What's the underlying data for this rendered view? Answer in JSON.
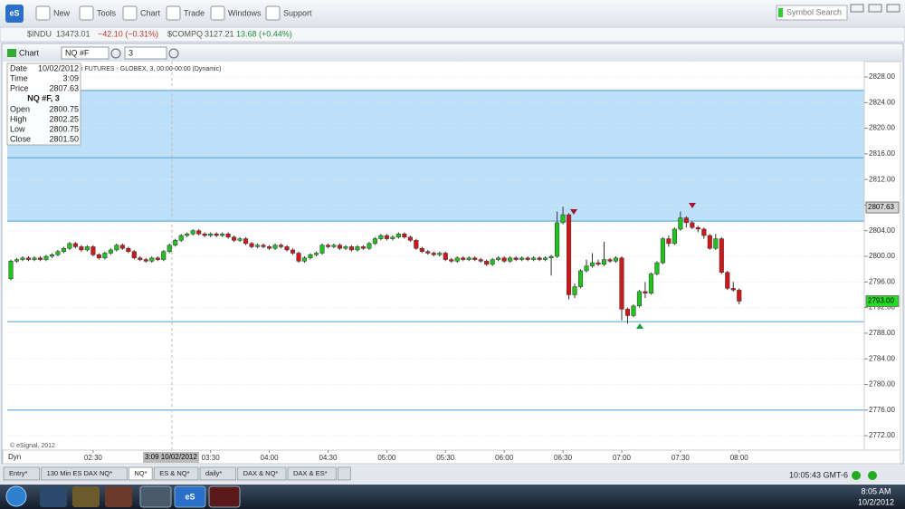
{
  "toolbar": {
    "app": "eS",
    "items": [
      "New",
      "Tools",
      "Chart",
      "Trade",
      "Windows",
      "Support"
    ],
    "search": "Symbol Search"
  },
  "ticker": [
    {
      "symbol": "$INDU",
      "last": "13473.01",
      "change": "−42.10 (−0.31%)",
      "color": "#c0392b"
    },
    {
      "symbol": "$COMPQ",
      "last": "3127.21",
      "change": "13.68 (+0.44%)",
      "color": "#1e8e3e"
    }
  ],
  "chart_window": {
    "title": "Chart",
    "symbol": "NQ #F",
    "interval": "3"
  },
  "chart_data": {
    "type": "candlestick",
    "subtitle": "i FUTURES - GLOBEX, 3, 00:00-00:00 (Dynamic)",
    "info": {
      "rows": [
        [
          "Date",
          "10/02/2012"
        ],
        [
          "Time",
          "3:09"
        ],
        [
          "Price",
          "2807.63"
        ]
      ],
      "symbol": "NQ #F, 3",
      "ohlc": [
        [
          "Open",
          "2800.75"
        ],
        [
          "High",
          "2802.25"
        ],
        [
          "Low",
          "2800.75"
        ],
        [
          "Close",
          "2801.50"
        ]
      ]
    },
    "crosshair_label": "3:09 10/02/2012",
    "copyright": "© eSignal, 2012",
    "mode": "Dyn",
    "categories": [
      null,
      null,
      null,
      null,
      null,
      null,
      null,
      null,
      null,
      null,
      null,
      null,
      null,
      null,
      "02:30",
      null,
      null,
      null,
      null,
      null,
      null,
      null,
      null,
      null,
      null,
      null,
      null,
      null,
      null,
      null,
      null,
      null,
      null,
      null,
      "03:30",
      null,
      null,
      null,
      null,
      null,
      null,
      null,
      null,
      null,
      "04:00",
      null,
      null,
      null,
      null,
      null,
      null,
      null,
      null,
      null,
      "04:30",
      null,
      null,
      null,
      null,
      null,
      null,
      null,
      null,
      null,
      "05:00",
      null,
      null,
      null,
      null,
      null,
      null,
      null,
      null,
      null,
      "05:30",
      null,
      null,
      null,
      null,
      null,
      null,
      null,
      null,
      null,
      "06:00",
      null,
      null,
      null,
      null,
      null,
      null,
      null,
      null,
      null,
      "06:30",
      null,
      null,
      null,
      null,
      null,
      null,
      null,
      null,
      null,
      "07:00",
      null,
      null,
      null,
      null,
      null,
      null,
      null,
      null,
      null,
      "07:30",
      null,
      null,
      null,
      null,
      null,
      null,
      null,
      null,
      null,
      "08:00"
    ],
    "open": [
      2796.5,
      2799.25,
      2799.5,
      2799.75,
      2799.5,
      2799.75,
      2799.5,
      2800,
      2800.25,
      2800.75,
      2801.25,
      2802,
      2801.5,
      2801,
      2801.5,
      2800.25,
      2799.75,
      2800.5,
      2801,
      2801.75,
      2801.25,
      2800.75,
      2799.75,
      2799.5,
      2799.25,
      2799.75,
      2799.5,
      2800.75,
      2801.75,
      2802.5,
      2803.25,
      2803.5,
      2804,
      2803.5,
      2803.25,
      2803.5,
      2803.25,
      2803.5,
      2803,
      2802.5,
      2802.75,
      2802,
      2801.5,
      2801.75,
      2801.5,
      2801.25,
      2801.75,
      2801.5,
      2801,
      2800.5,
      2799.25,
      2799.75,
      2800.25,
      2800.5,
      2801.75,
      2801.5,
      2801.75,
      2801.25,
      2801.5,
      2801,
      2801.5,
      2801.25,
      2802,
      2802.75,
      2803.25,
      2802.75,
      2803,
      2803.5,
      2803,
      2802.5,
      2801.25,
      2800.75,
      2800.5,
      2800.25,
      2800.5,
      2799.5,
      2799.25,
      2799.75,
      2799.5,
      2799.75,
      2799.5,
      2799.25,
      2798.75,
      2799.5,
      2799.75,
      2799.25,
      2799.75,
      2799.5,
      2799.75,
      2799.5,
      2799.75,
      2799.5,
      2799.75,
      2800,
      2805.25,
      2806.5,
      2794,
      2795.25,
      2797.75,
      2798.5,
      2799,
      2798.75,
      2799.5,
      2799.25,
      2799.75,
      2791.75,
      2790.75,
      2792.25,
      2794.5,
      2794.25,
      2797.25,
      2799,
      2802.75,
      2802,
      2804.25,
      2806,
      2805.25,
      2804.5,
      2804.25,
      2803.25,
      2801.25,
      2802.75,
      2797.5,
      2795,
      2794.75
    ],
    "high": [
      2799.5,
      2799.75,
      2800,
      2800,
      2800,
      2800,
      2800.25,
      2800.5,
      2801,
      2801.5,
      2802.25,
      2802.25,
      2801.75,
      2801.75,
      2801.75,
      2800.5,
      2800.75,
      2801.25,
      2802,
      2802,
      2801.5,
      2801,
      2800,
      2799.75,
      2800,
      2800,
      2801,
      2802,
      2802.75,
      2803.5,
      2803.75,
      2804.25,
      2804.25,
      2803.75,
      2803.75,
      2803.75,
      2803.75,
      2803.75,
      2803.25,
      2803,
      2803,
      2802.25,
      2802,
      2802,
      2801.75,
      2802,
      2802,
      2801.75,
      2801.25,
      2800.75,
      2800,
      2800.5,
      2800.75,
      2802,
      2802,
      2802,
      2802,
      2801.75,
      2801.75,
      2801.75,
      2801.75,
      2802.25,
      2803,
      2803.5,
      2803.5,
      2803.25,
      2803.75,
      2803.75,
      2803.25,
      2802.75,
      2801.5,
      2801,
      2800.75,
      2800.75,
      2800.75,
      2799.75,
      2800,
      2800,
      2800,
      2800,
      2799.75,
      2799.5,
      2799.75,
      2800,
      2800,
      2800,
      2800,
      2800,
      2800,
      2800,
      2800,
      2800,
      2800.25,
      2807,
      2807.75,
      2806.75,
      2795.75,
      2798,
      2799.5,
      2800.5,
      2799.5,
      2802.25,
      2799.75,
      2800,
      2800,
      2792,
      2792.5,
      2794.75,
      2796,
      2797.5,
      2799.25,
      2803,
      2803.25,
      2804.5,
      2807,
      2806.25,
      2805.5,
      2804.75,
      2804.5,
      2803.5,
      2803.5,
      2803,
      2797.75,
      2796,
      2795
    ],
    "low": [
      2796.25,
      2799,
      2799.25,
      2799.25,
      2799.25,
      2799.25,
      2799.25,
      2799.75,
      2800,
      2800.5,
      2801,
      2801.25,
      2800.75,
      2800.75,
      2800,
      2799.5,
      2799.5,
      2800.25,
      2800.75,
      2801,
      2800.5,
      2799.5,
      2799.25,
      2799,
      2799,
      2799.25,
      2799.25,
      2800.5,
      2801.5,
      2802.25,
      2803,
      2803.25,
      2803.25,
      2803,
      2803,
      2803,
      2803,
      2802.75,
      2802.25,
      2802.25,
      2801.75,
      2801.25,
      2801.25,
      2801.25,
      2801,
      2801,
      2801.25,
      2800.75,
      2800.25,
      2799,
      2799,
      2799.5,
      2800,
      2800.25,
      2801.25,
      2801.25,
      2801,
      2801,
      2800.75,
      2800.75,
      2801,
      2801,
      2801.75,
      2802.5,
      2802.5,
      2802.5,
      2802.75,
      2802.75,
      2802.25,
      2801,
      2800.5,
      2800.25,
      2800,
      2800,
      2799.25,
      2799,
      2799,
      2799.25,
      2799.25,
      2799.25,
      2799,
      2798.5,
      2798.5,
      2799.25,
      2799,
      2799,
      2799.25,
      2799.25,
      2799.25,
      2799.25,
      2799.25,
      2799.25,
      2797,
      2799.75,
      2805,
      2793.25,
      2793.5,
      2795,
      2797.5,
      2798.25,
      2798.5,
      2798.5,
      2799,
      2799,
      2790,
      2789.5,
      2790.5,
      2792,
      2793.5,
      2794,
      2797,
      2798.75,
      2801.5,
      2801.75,
      2804,
      2804.5,
      2804.25,
      2803.75,
      2802.75,
      2801,
      2801,
      2797.25,
      2794.75,
      2794.5,
      2792.5
    ],
    "close": [
      2799.25,
      2799.5,
      2799.75,
      2799.5,
      2799.75,
      2799.5,
      2800,
      2800.25,
      2800.75,
      2801.25,
      2802,
      2801.5,
      2801,
      2801.5,
      2800.25,
      2799.75,
      2800.5,
      2801,
      2801.75,
      2801.25,
      2800.75,
      2799.75,
      2799.5,
      2799.25,
      2799.75,
      2799.5,
      2800.75,
      2801.75,
      2802.5,
      2803.25,
      2803.5,
      2804,
      2803.5,
      2803.25,
      2803.5,
      2803.25,
      2803.5,
      2803,
      2802.5,
      2802.75,
      2802,
      2801.5,
      2801.75,
      2801.5,
      2801.25,
      2801.75,
      2801.5,
      2801,
      2800.5,
      2799.25,
      2799.75,
      2800.25,
      2800.5,
      2801.75,
      2801.5,
      2801.75,
      2801.25,
      2801.5,
      2801,
      2801.5,
      2801.25,
      2802,
      2802.75,
      2803.25,
      2802.75,
      2803,
      2803.5,
      2803,
      2802.5,
      2801.25,
      2800.75,
      2800.5,
      2800.25,
      2800.5,
      2799.5,
      2799.25,
      2799.75,
      2799.5,
      2799.75,
      2799.5,
      2799.25,
      2798.75,
      2799.5,
      2799.75,
      2799.25,
      2799.75,
      2799.5,
      2799.75,
      2799.5,
      2799.75,
      2799.5,
      2799.75,
      2800,
      2805.25,
      2806.5,
      2794,
      2795.25,
      2797.75,
      2798.5,
      2799,
      2798.75,
      2799.5,
      2799.25,
      2799.75,
      2791.75,
      2790.75,
      2792.25,
      2794.5,
      2794.25,
      2797.25,
      2799,
      2802.75,
      2802,
      2804.25,
      2806,
      2805.25,
      2804.5,
      2804.25,
      2803.25,
      2801.25,
      2802.75,
      2797.5,
      2795,
      2794.75,
      2793
    ],
    "up_color": "#22c21e",
    "down_color": "#d01818",
    "ylim": [
      2769.75,
      2830.4
    ],
    "yticks": [
      {
        "value": 2772,
        "label": "2772.00"
      },
      {
        "value": 2776,
        "label": "2776.00"
      },
      {
        "value": 2780,
        "label": "2780.00"
      },
      {
        "value": 2784,
        "label": "2784.00"
      },
      {
        "value": 2788,
        "label": "2788.00"
      },
      {
        "value": 2792,
        "label": "2792.00"
      },
      {
        "value": 2796,
        "label": "2796.00"
      },
      {
        "value": 2800,
        "label": "2800.00"
      },
      {
        "value": 2804,
        "label": "2804.00"
      },
      {
        "value": 2808,
        "label": "2808.00"
      },
      {
        "value": 2812,
        "label": "2812.00"
      },
      {
        "value": 2816,
        "label": "2816.00"
      },
      {
        "value": 2820,
        "label": "2820.00"
      },
      {
        "value": 2824,
        "label": "2824.00"
      },
      {
        "value": 2828,
        "label": "2828.00"
      }
    ],
    "grid": true,
    "zone": [
      2805.5,
      2825.9
    ],
    "zone_color": "#b5ddf8",
    "levels": [
      2825.9,
      2815.4,
      2805.5,
      2789.8,
      2776
    ],
    "level_color": "#4a9fe0",
    "price_markers": [
      {
        "value": 2807.63,
        "label": "2807.63",
        "color": "#d6d6d6"
      },
      {
        "value": 2793,
        "label": "2793.00",
        "color": "#22dd22"
      }
    ]
  },
  "tabs": [
    "Entry*",
    "130 Min ES DAX NQ*",
    "NQ*",
    "ES & NQ*",
    "daily*",
    "DAX & NQ*",
    "DAX & ES*"
  ],
  "status_time": "10:05:43 GMT-6",
  "taskbar": {
    "app": "eS",
    "time": "8:05 AM",
    "date": "10/2/2012"
  }
}
